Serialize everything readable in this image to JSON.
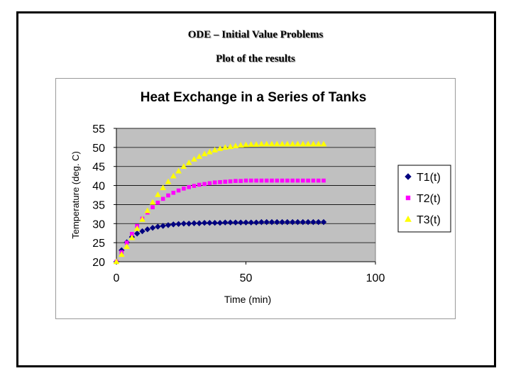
{
  "slide": {
    "title": "ODE – Initial Value Problems",
    "subtitle": "Plot of the results"
  },
  "chart_data": {
    "type": "scatter",
    "title": "Heat Exchange in a Series of Tanks",
    "xlabel": "Time (min)",
    "ylabel": "Temperature (deg. C)",
    "xlim": [
      0,
      100
    ],
    "ylim": [
      20,
      55
    ],
    "xticks": [
      0,
      50,
      100
    ],
    "yticks": [
      20,
      25,
      30,
      35,
      40,
      45,
      50,
      55
    ],
    "grid": "horizontal",
    "plot_background": "#c0c0c0",
    "legend": "right",
    "x": [
      0,
      2,
      4,
      6,
      8,
      10,
      12,
      14,
      16,
      18,
      20,
      22,
      24,
      26,
      28,
      30,
      32,
      34,
      36,
      38,
      40,
      42,
      44,
      46,
      48,
      50,
      52,
      54,
      56,
      58,
      60,
      62,
      64,
      66,
      68,
      70,
      72,
      74,
      76,
      78,
      80
    ],
    "series": [
      {
        "name": "T1(t)",
        "marker": "diamond",
        "color": "#000080",
        "values": [
          20.0,
          23.0,
          25.1,
          26.5,
          27.4,
          28.0,
          28.5,
          28.9,
          29.2,
          29.4,
          29.6,
          29.8,
          29.9,
          30.0,
          30.0,
          30.1,
          30.1,
          30.2,
          30.2,
          30.2,
          30.2,
          30.3,
          30.3,
          30.3,
          30.3,
          30.3,
          30.3,
          30.3,
          30.4,
          30.4,
          30.4,
          30.4,
          30.4,
          30.4,
          30.4,
          30.4,
          30.4,
          30.4,
          30.4,
          30.4,
          30.4
        ]
      },
      {
        "name": "T2(t)",
        "marker": "square",
        "color": "#ff00ff",
        "values": [
          20.0,
          22.5,
          25.0,
          27.3,
          29.4,
          31.3,
          32.9,
          34.3,
          35.5,
          36.5,
          37.4,
          38.1,
          38.7,
          39.2,
          39.6,
          39.9,
          40.2,
          40.4,
          40.6,
          40.8,
          40.9,
          41.0,
          41.1,
          41.2,
          41.2,
          41.3,
          41.3,
          41.3,
          41.3,
          41.3,
          41.3,
          41.3,
          41.3,
          41.3,
          41.3,
          41.3,
          41.3,
          41.3,
          41.3,
          41.3,
          41.3
        ]
      },
      {
        "name": "T3(t)",
        "marker": "triangle",
        "color": "#ffff00",
        "values": [
          20.0,
          21.9,
          24.0,
          26.3,
          28.7,
          31.1,
          33.4,
          35.6,
          37.6,
          39.4,
          41.0,
          42.5,
          43.8,
          45.0,
          46.0,
          46.9,
          47.6,
          48.3,
          48.8,
          49.3,
          49.7,
          50.0,
          50.2,
          50.4,
          50.6,
          50.7,
          50.8,
          50.8,
          50.9,
          50.9,
          50.9,
          50.9,
          50.9,
          50.9,
          50.9,
          50.9,
          50.9,
          50.9,
          50.9,
          50.9,
          50.9
        ]
      }
    ]
  }
}
